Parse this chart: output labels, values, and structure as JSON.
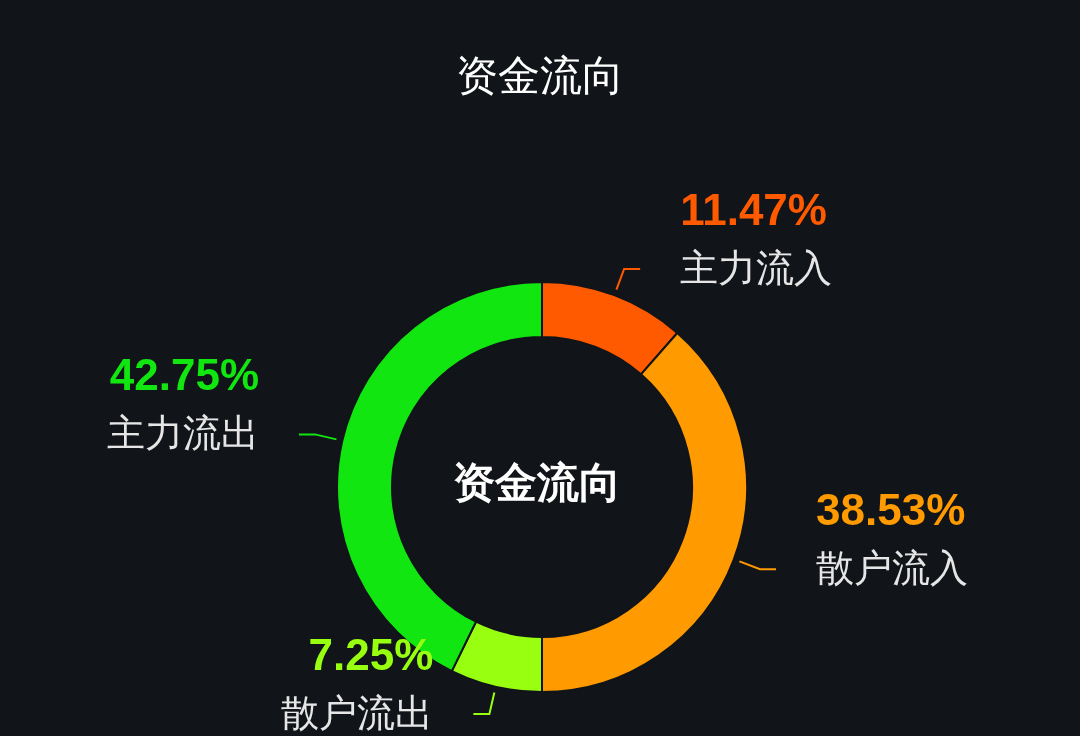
{
  "chart_data": {
    "type": "donut",
    "title": "资金流向",
    "annotations": [
      "资金流向"
    ],
    "categories": [
      "主力流入",
      "散户流入",
      "散户流出",
      "主力流出"
    ],
    "values": [
      11.47,
      38.53,
      7.25,
      42.75
    ],
    "value_labels": [
      "11.47%",
      "38.53%",
      "7.25%",
      "42.75%"
    ],
    "colors": [
      "#ff5a00",
      "#ff9a00",
      "#99ff11",
      "#11e611"
    ]
  }
}
